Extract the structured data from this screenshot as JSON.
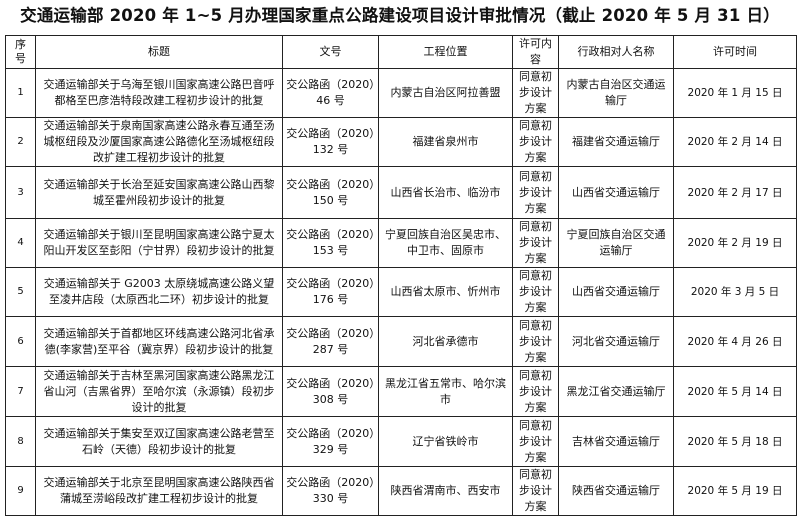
{
  "page_title": "交通运输部 2020 年 1~5 月办理国家重点公路建设项目设计审批情况（截止 2020 年 5 月 31 日）",
  "table": {
    "headers": [
      "序号",
      "标题",
      "文号",
      "工程位置",
      "许可内容",
      "行政相对人名称",
      "许可时间"
    ],
    "rows": [
      {
        "no": "1",
        "title": "交通运输部关于乌海至银川国家高速公路巴音呼都格至巴彦浩特段改建工程初步设计的批复",
        "doc": "交公路函（2020）46 号",
        "location": "内蒙古自治区阿拉善盟",
        "content": "同意初步设计方案",
        "party": "内蒙古自治区交通运输厅",
        "date": "2020 年 1 月 15 日"
      },
      {
        "no": "2",
        "title": "交通运输部关于泉南国家高速公路永春互通至汤城枢纽段及沙厦国家高速公路德化至汤城枢纽段改扩建工程初步设计的批复",
        "doc": "交公路函（2020）132 号",
        "location": "福建省泉州市",
        "content": "同意初步设计方案",
        "party": "福建省交通运输厅",
        "date": "2020 年 2 月 14 日"
      },
      {
        "no": "3",
        "title": "交通运输部关于长治至延安国家高速公路山西黎城至霍州段初步设计的批复",
        "doc": "交公路函（2020）150 号",
        "location": "山西省长治市、临汾市",
        "content": "同意初步设计方案",
        "party": "山西省交通运输厅",
        "date": "2020 年 2 月 17 日"
      },
      {
        "no": "4",
        "title": "交通运输部关于银川至昆明国家高速公路宁夏太阳山开发区至彭阳（宁甘界）段初步设计的批复",
        "doc": "交公路函（2020）153 号",
        "location": "宁夏回族自治区吴忠市、中卫市、固原市",
        "content": "同意初步设计方案",
        "party": "宁夏回族自治区交通运输厅",
        "date": "2020 年 2 月 19 日"
      },
      {
        "no": "5",
        "title": "交通运输部关于 G2003 太原绕城高速公路义望至凌井店段（太原西北二环）初步设计的批复",
        "doc": "交公路函（2020）176 号",
        "location": "山西省太原市、忻州市",
        "content": "同意初步设计方案",
        "party": "山西省交通运输厅",
        "date": "2020 年 3 月 5 日"
      },
      {
        "no": "6",
        "title": "交通运输部关于首都地区环线高速公路河北省承德(李家营)至平谷（冀京界）段初步设计的批复",
        "doc": "交公路函（2020）287 号",
        "location": "河北省承德市",
        "content": "同意初步设计方案",
        "party": "河北省交通运输厅",
        "date": "2020 年 4 月 26 日"
      },
      {
        "no": "7",
        "title": "交通运输部关于吉林至黑河国家高速公路黑龙江省山河（吉黑省界）至哈尔滨（永源镇）段初步设计的批复",
        "doc": "交公路函（2020）308 号",
        "location": "黑龙江省五常市、哈尔滨市",
        "content": "同意初步设计方案",
        "party": "黑龙江省交通运输厅",
        "date": "2020 年 5 月 14 日"
      },
      {
        "no": "8",
        "title": "交通运输部关于集安至双辽国家高速公路老营至石岭（天德）段初步设计的批复",
        "doc": "交公路函（2020）329 号",
        "location": "辽宁省铁岭市",
        "content": "同意初步设计方案",
        "party": "吉林省交通运输厅",
        "date": "2020 年 5 月 18 日"
      },
      {
        "no": "9",
        "title": "交通运输部关于北京至昆明国家高速公路陕西省蒲城至涝峪段改扩建工程初步设计的批复",
        "doc": "交公路函（2020）330 号",
        "location": "陕西省渭南市、西安市",
        "content": "同意初步设计方案",
        "party": "陕西省交通运输厅",
        "date": "2020 年 5 月 19 日"
      }
    ]
  }
}
